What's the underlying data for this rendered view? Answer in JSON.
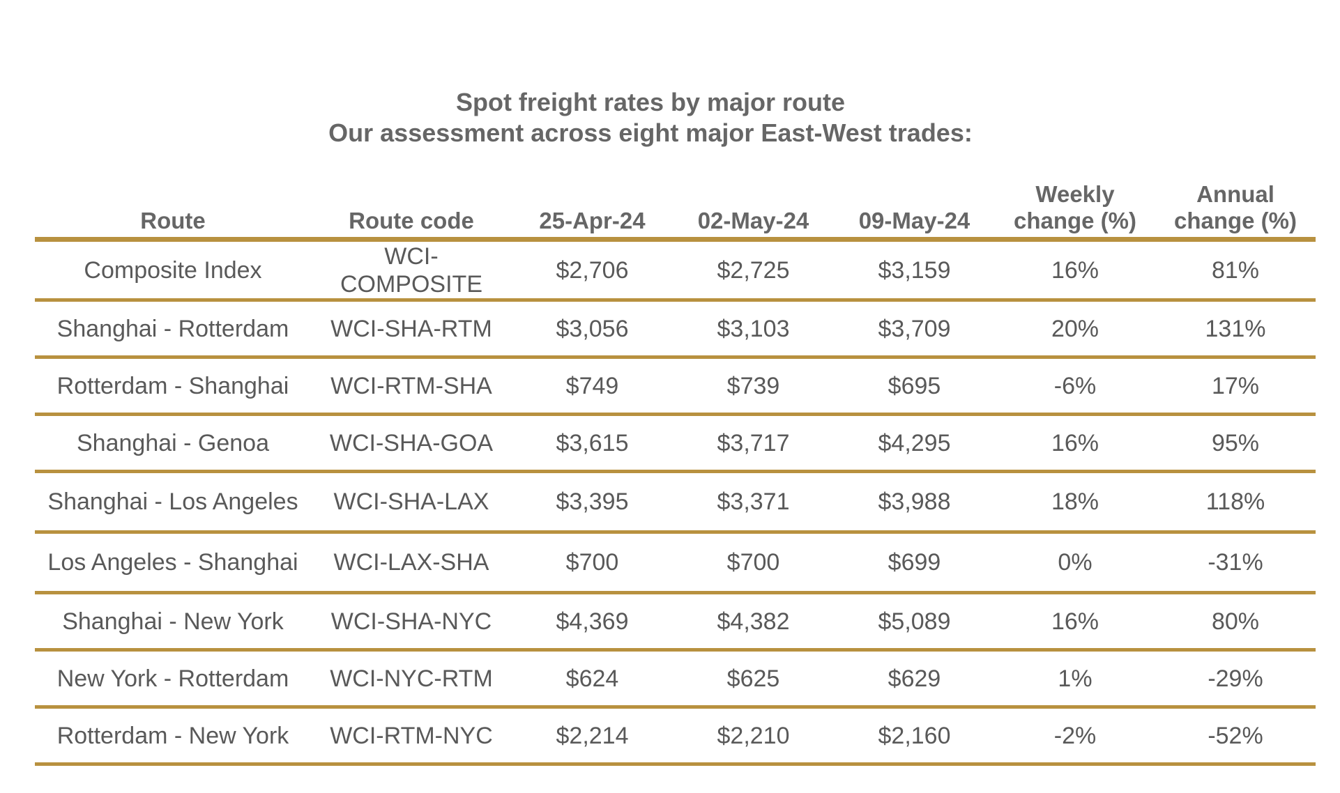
{
  "title": "Spot freight rates by major route",
  "subtitle": "Our assessment across eight major East-West trades:",
  "accent_color": "#b8913f",
  "chart_data": {
    "type": "table",
    "title": "Spot freight rates by major route",
    "subtitle": "Our assessment across eight major East-West trades:",
    "columns": [
      "Route",
      "Route code",
      "25-Apr-24",
      "02-May-24",
      "09-May-24",
      "Weekly change (%)",
      "Annual change (%)"
    ],
    "rows": [
      [
        "Composite Index",
        "WCI-COMPOSITE",
        "$2,706",
        "$2,725",
        "$3,159",
        "16%",
        "81%"
      ],
      [
        "Shanghai - Rotterdam",
        "WCI-SHA-RTM",
        "$3,056",
        "$3,103",
        "$3,709",
        "20%",
        "131%"
      ],
      [
        "Rotterdam - Shanghai",
        "WCI-RTM-SHA",
        "$749",
        "$739",
        "$695",
        "-6%",
        "17%"
      ],
      [
        "Shanghai - Genoa",
        "WCI-SHA-GOA",
        "$3,615",
        "$3,717",
        "$4,295",
        "16%",
        "95%"
      ],
      [
        "Shanghai - Los Angeles",
        "WCI-SHA-LAX",
        "$3,395",
        "$3,371",
        "$3,988",
        "18%",
        "118%"
      ],
      [
        "Los Angeles - Shanghai",
        "WCI-LAX-SHA",
        "$700",
        "$700",
        "$699",
        "0%",
        "-31%"
      ],
      [
        "Shanghai - New York",
        "WCI-SHA-NYC",
        "$4,369",
        "$4,382",
        "$5,089",
        "16%",
        "80%"
      ],
      [
        "New York - Rotterdam",
        "WCI-NYC-RTM",
        "$624",
        "$625",
        "$629",
        "1%",
        "-29%"
      ],
      [
        "Rotterdam - New York",
        "WCI-RTM-NYC",
        "$2,214",
        "$2,210",
        "$2,160",
        "-2%",
        "-52%"
      ]
    ]
  }
}
